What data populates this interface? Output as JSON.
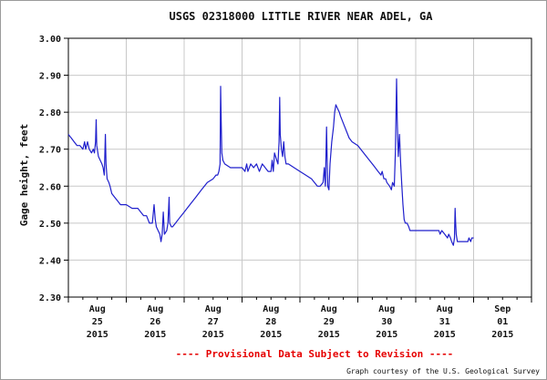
{
  "chart_data": {
    "type": "line",
    "title": "USGS 02318000 LITTLE RIVER NEAR ADEL, GA",
    "ylabel": "Gage height, feet",
    "xlabel": "",
    "ylim": [
      2.3,
      3.0
    ],
    "yticks": [
      "3.00",
      "2.90",
      "2.80",
      "2.70",
      "2.60",
      "2.50",
      "2.40",
      "2.30"
    ],
    "xlim": [
      0,
      8
    ],
    "xticks": [
      {
        "x": 0.5,
        "month": "Aug",
        "day": "25",
        "year": "2015"
      },
      {
        "x": 1.5,
        "month": "Aug",
        "day": "26",
        "year": "2015"
      },
      {
        "x": 2.5,
        "month": "Aug",
        "day": "27",
        "year": "2015"
      },
      {
        "x": 3.5,
        "month": "Aug",
        "day": "28",
        "year": "2015"
      },
      {
        "x": 4.5,
        "month": "Aug",
        "day": "29",
        "year": "2015"
      },
      {
        "x": 5.5,
        "month": "Aug",
        "day": "30",
        "year": "2015"
      },
      {
        "x": 6.5,
        "month": "Aug",
        "day": "31",
        "year": "2015"
      },
      {
        "x": 7.5,
        "month": "Sep",
        "day": "01",
        "year": "2015"
      }
    ],
    "grid": true,
    "line_color": "#1f1fcc",
    "series": [
      {
        "points": [
          [
            0.0,
            2.74
          ],
          [
            0.05,
            2.73
          ],
          [
            0.1,
            2.72
          ],
          [
            0.15,
            2.71
          ],
          [
            0.2,
            2.71
          ],
          [
            0.25,
            2.7
          ],
          [
            0.28,
            2.72
          ],
          [
            0.3,
            2.7
          ],
          [
            0.33,
            2.72
          ],
          [
            0.36,
            2.7
          ],
          [
            0.4,
            2.69
          ],
          [
            0.43,
            2.7
          ],
          [
            0.45,
            2.69
          ],
          [
            0.47,
            2.72
          ],
          [
            0.48,
            2.78
          ],
          [
            0.49,
            2.71
          ],
          [
            0.52,
            2.68
          ],
          [
            0.55,
            2.67
          ],
          [
            0.58,
            2.66
          ],
          [
            0.6,
            2.65
          ],
          [
            0.62,
            2.63
          ],
          [
            0.64,
            2.74
          ],
          [
            0.65,
            2.66
          ],
          [
            0.67,
            2.62
          ],
          [
            0.7,
            2.61
          ],
          [
            0.72,
            2.6
          ],
          [
            0.75,
            2.58
          ],
          [
            0.8,
            2.57
          ],
          [
            0.85,
            2.56
          ],
          [
            0.9,
            2.55
          ],
          [
            1.0,
            2.55
          ],
          [
            1.1,
            2.54
          ],
          [
            1.2,
            2.54
          ],
          [
            1.25,
            2.53
          ],
          [
            1.3,
            2.52
          ],
          [
            1.35,
            2.52
          ],
          [
            1.4,
            2.5
          ],
          [
            1.45,
            2.5
          ],
          [
            1.48,
            2.55
          ],
          [
            1.5,
            2.51
          ],
          [
            1.52,
            2.49
          ],
          [
            1.55,
            2.48
          ],
          [
            1.58,
            2.47
          ],
          [
            1.6,
            2.45
          ],
          [
            1.62,
            2.47
          ],
          [
            1.64,
            2.53
          ],
          [
            1.66,
            2.47
          ],
          [
            1.7,
            2.48
          ],
          [
            1.72,
            2.5
          ],
          [
            1.74,
            2.57
          ],
          [
            1.75,
            2.5
          ],
          [
            1.78,
            2.49
          ],
          [
            1.8,
            2.49
          ],
          [
            1.85,
            2.5
          ],
          [
            1.9,
            2.51
          ],
          [
            2.0,
            2.53
          ],
          [
            2.1,
            2.55
          ],
          [
            2.2,
            2.57
          ],
          [
            2.3,
            2.59
          ],
          [
            2.4,
            2.61
          ],
          [
            2.5,
            2.62
          ],
          [
            2.55,
            2.63
          ],
          [
            2.58,
            2.63
          ],
          [
            2.6,
            2.64
          ],
          [
            2.62,
            2.66
          ],
          [
            2.63,
            2.87
          ],
          [
            2.64,
            2.78
          ],
          [
            2.65,
            2.69
          ],
          [
            2.67,
            2.67
          ],
          [
            2.7,
            2.66
          ],
          [
            2.8,
            2.65
          ],
          [
            2.9,
            2.65
          ],
          [
            3.0,
            2.65
          ],
          [
            3.05,
            2.64
          ],
          [
            3.08,
            2.66
          ],
          [
            3.1,
            2.64
          ],
          [
            3.15,
            2.66
          ],
          [
            3.2,
            2.65
          ],
          [
            3.25,
            2.66
          ],
          [
            3.3,
            2.64
          ],
          [
            3.35,
            2.66
          ],
          [
            3.4,
            2.65
          ],
          [
            3.45,
            2.64
          ],
          [
            3.5,
            2.64
          ],
          [
            3.52,
            2.67
          ],
          [
            3.54,
            2.64
          ],
          [
            3.56,
            2.69
          ],
          [
            3.58,
            2.68
          ],
          [
            3.6,
            2.67
          ],
          [
            3.62,
            2.66
          ],
          [
            3.64,
            2.72
          ],
          [
            3.65,
            2.84
          ],
          [
            3.66,
            2.74
          ],
          [
            3.68,
            2.7
          ],
          [
            3.7,
            2.68
          ],
          [
            3.72,
            2.72
          ],
          [
            3.74,
            2.68
          ],
          [
            3.76,
            2.66
          ],
          [
            3.8,
            2.66
          ],
          [
            3.9,
            2.65
          ],
          [
            4.0,
            2.64
          ],
          [
            4.1,
            2.63
          ],
          [
            4.2,
            2.62
          ],
          [
            4.25,
            2.61
          ],
          [
            4.3,
            2.6
          ],
          [
            4.35,
            2.6
          ],
          [
            4.4,
            2.61
          ],
          [
            4.42,
            2.65
          ],
          [
            4.44,
            2.6
          ],
          [
            4.46,
            2.76
          ],
          [
            4.47,
            2.68
          ],
          [
            4.48,
            2.6
          ],
          [
            4.5,
            2.59
          ],
          [
            4.52,
            2.66
          ],
          [
            4.55,
            2.72
          ],
          [
            4.58,
            2.76
          ],
          [
            4.6,
            2.8
          ],
          [
            4.62,
            2.82
          ],
          [
            4.65,
            2.81
          ],
          [
            4.68,
            2.8
          ],
          [
            4.7,
            2.79
          ],
          [
            4.75,
            2.77
          ],
          [
            4.8,
            2.75
          ],
          [
            4.85,
            2.73
          ],
          [
            4.9,
            2.72
          ],
          [
            5.0,
            2.71
          ],
          [
            5.1,
            2.69
          ],
          [
            5.2,
            2.67
          ],
          [
            5.25,
            2.66
          ],
          [
            5.3,
            2.65
          ],
          [
            5.35,
            2.64
          ],
          [
            5.4,
            2.63
          ],
          [
            5.42,
            2.64
          ],
          [
            5.45,
            2.62
          ],
          [
            5.48,
            2.62
          ],
          [
            5.5,
            2.61
          ],
          [
            5.55,
            2.6
          ],
          [
            5.58,
            2.59
          ],
          [
            5.6,
            2.61
          ],
          [
            5.63,
            2.6
          ],
          [
            5.65,
            2.7
          ],
          [
            5.66,
            2.8
          ],
          [
            5.67,
            2.89
          ],
          [
            5.68,
            2.78
          ],
          [
            5.7,
            2.68
          ],
          [
            5.72,
            2.74
          ],
          [
            5.74,
            2.66
          ],
          [
            5.76,
            2.6
          ],
          [
            5.78,
            2.55
          ],
          [
            5.8,
            2.51
          ],
          [
            5.82,
            2.5
          ],
          [
            5.85,
            2.5
          ],
          [
            5.88,
            2.49
          ],
          [
            5.9,
            2.48
          ],
          [
            6.0,
            2.48
          ],
          [
            6.1,
            2.48
          ],
          [
            6.2,
            2.48
          ],
          [
            6.3,
            2.48
          ],
          [
            6.4,
            2.48
          ],
          [
            6.42,
            2.47
          ],
          [
            6.45,
            2.48
          ],
          [
            6.5,
            2.47
          ],
          [
            6.55,
            2.46
          ],
          [
            6.57,
            2.47
          ],
          [
            6.6,
            2.46
          ],
          [
            6.62,
            2.45
          ],
          [
            6.65,
            2.44
          ],
          [
            6.67,
            2.46
          ],
          [
            6.68,
            2.54
          ],
          [
            6.69,
            2.5
          ],
          [
            6.7,
            2.47
          ],
          [
            6.72,
            2.45
          ],
          [
            6.75,
            2.45
          ],
          [
            6.8,
            2.45
          ],
          [
            6.85,
            2.45
          ],
          [
            6.9,
            2.45
          ],
          [
            6.92,
            2.46
          ],
          [
            6.95,
            2.45
          ],
          [
            6.97,
            2.46
          ],
          [
            7.0,
            2.46
          ]
        ]
      }
    ]
  },
  "footer": {
    "provisional_note": "---- Provisional Data Subject to Revision ----",
    "credit": "Graph courtesy of the U.S. Geological Survey"
  }
}
